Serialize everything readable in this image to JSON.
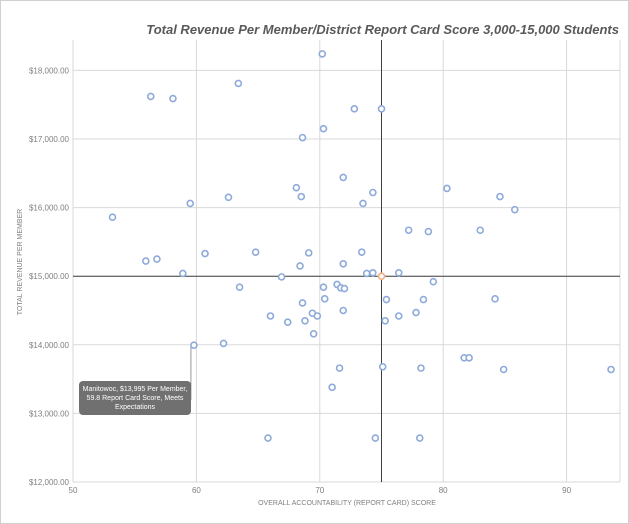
{
  "chart_data": {
    "type": "scatter",
    "title": "Total Revenue Per Member/District Report Card Score 3,000-15,000 Students",
    "xlabel": "OVERALL ACCOUNTABILITY (REPORT CARD) SCORE",
    "ylabel": "TOTAL REVENUE PER MEMBER",
    "xlim": [
      50,
      94
    ],
    "ylim": [
      12000,
      18500
    ],
    "xticks": [
      "50",
      "60",
      "70",
      "80",
      "90"
    ],
    "yticks": [
      "$12,000.00",
      "$13,000.00",
      "$14,000.00",
      "$15,000.00",
      "$16,000.00",
      "$17,000.00",
      "$18,000.00"
    ],
    "grid": true,
    "reference_lines": {
      "x": 75,
      "y": 15000
    },
    "colors": {
      "point": "#8eaadb",
      "point_fill": "#ffffff",
      "highlight": "#f4b183",
      "grid": "#d9d9d9",
      "ref_line": "#404040"
    },
    "highlight_point": {
      "x": 75,
      "y": 15000
    },
    "annotation": {
      "text": "Manitowoc, $13,995 Per Member, 59.8 Report Card Score, Meets Expectations",
      "x": 59.8,
      "y": 13995
    },
    "points": [
      [
        70.2,
        18240
      ],
      [
        56.3,
        17620
      ],
      [
        58.1,
        17590
      ],
      [
        63.4,
        17810
      ],
      [
        72.8,
        17440
      ],
      [
        75.0,
        17440
      ],
      [
        70.3,
        17150
      ],
      [
        68.6,
        17020
      ],
      [
        71.9,
        16440
      ],
      [
        68.1,
        16290
      ],
      [
        74.3,
        16220
      ],
      [
        80.3,
        16280
      ],
      [
        53.2,
        15860
      ],
      [
        59.5,
        16060
      ],
      [
        62.6,
        16150
      ],
      [
        68.5,
        16160
      ],
      [
        73.5,
        16060
      ],
      [
        84.6,
        16160
      ],
      [
        85.8,
        15970
      ],
      [
        77.2,
        15670
      ],
      [
        78.8,
        15650
      ],
      [
        83.0,
        15670
      ],
      [
        55.9,
        15220
      ],
      [
        56.8,
        15250
      ],
      [
        60.7,
        15330
      ],
      [
        64.8,
        15350
      ],
      [
        69.1,
        15340
      ],
      [
        73.4,
        15350
      ],
      [
        58.9,
        15040
      ],
      [
        66.9,
        14990
      ],
      [
        68.4,
        15150
      ],
      [
        71.9,
        15180
      ],
      [
        73.8,
        15040
      ],
      [
        74.3,
        15050
      ],
      [
        76.4,
        15050
      ],
      [
        63.5,
        14840
      ],
      [
        70.3,
        14840
      ],
      [
        71.4,
        14880
      ],
      [
        71.7,
        14830
      ],
      [
        72.0,
        14820
      ],
      [
        79.2,
        14920
      ],
      [
        68.6,
        14610
      ],
      [
        70.4,
        14670
      ],
      [
        75.4,
        14660
      ],
      [
        78.4,
        14660
      ],
      [
        84.2,
        14670
      ],
      [
        66.0,
        14420
      ],
      [
        67.4,
        14330
      ],
      [
        68.8,
        14350
      ],
      [
        69.4,
        14460
      ],
      [
        69.8,
        14420
      ],
      [
        71.9,
        14500
      ],
      [
        75.3,
        14350
      ],
      [
        76.4,
        14420
      ],
      [
        77.8,
        14470
      ],
      [
        69.5,
        14160
      ],
      [
        62.2,
        14020
      ],
      [
        81.7,
        13810
      ],
      [
        82.1,
        13810
      ],
      [
        71.6,
        13660
      ],
      [
        75.1,
        13680
      ],
      [
        78.2,
        13660
      ],
      [
        84.9,
        13640
      ],
      [
        93.6,
        13640
      ],
      [
        71.0,
        13380
      ],
      [
        65.8,
        12640
      ],
      [
        74.5,
        12640
      ],
      [
        78.1,
        12640
      ],
      [
        59.8,
        13995
      ]
    ]
  }
}
